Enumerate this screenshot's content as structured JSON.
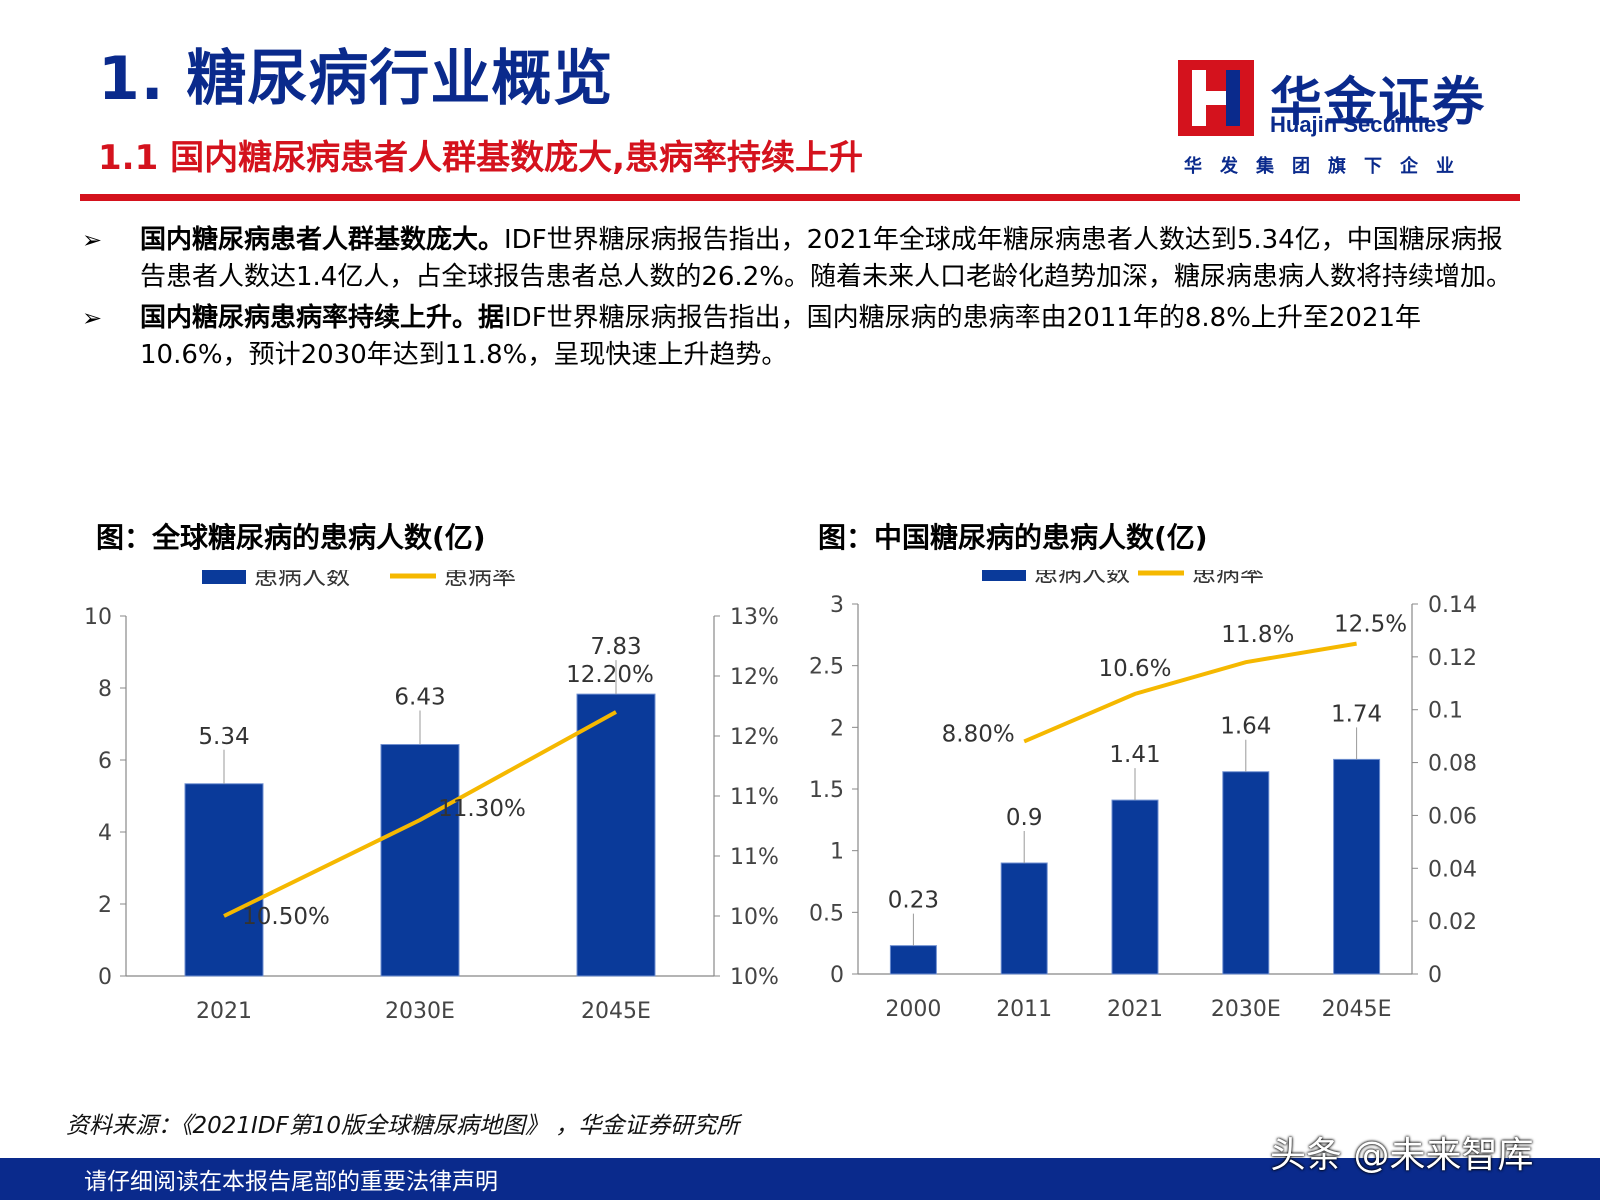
{
  "header": {
    "title": "1. 糖尿病行业概览",
    "subtitle": "1.1 国内糖尿病患者人群基数庞大,患病率持续上升"
  },
  "logo": {
    "name_cn": "华金证券",
    "name_en": "Huajin Securities",
    "slogan": "华发集团旗下企业"
  },
  "bullets": [
    {
      "marker": "➢",
      "lead": "国内糖尿病患者人群基数庞大。",
      "body": "IDF世界糖尿病报告指出，2021年全球成年糖尿病患者人数达到5.34亿，中国糖尿病报告患者人数达1.4亿人，占全球报告患者总人数的26.2%。随着未来人口老龄化趋势加深，糖尿病患病人数将持续增加。"
    },
    {
      "marker": "➢",
      "lead": "国内糖尿病患病率持续上升。据",
      "body": "IDF世界糖尿病报告指出，国内糖尿病的患病率由2011年的8.8%上升至2021年10.6%，预计2030年达到11.8%，呈现快速上升趋势。"
    }
  ],
  "chart_data": [
    {
      "type": "bar",
      "title": "图：全球糖尿病的患病人数(亿)",
      "legend": [
        "患病人数",
        "患病率"
      ],
      "legend_position": "top",
      "categories": [
        "2021",
        "2030E",
        "2045E"
      ],
      "series": [
        {
          "name": "患病人数",
          "type": "bar",
          "axis": "left",
          "values": [
            5.34,
            6.43,
            7.83
          ],
          "labels": [
            "5.34",
            "6.43",
            "7.83"
          ],
          "color": "#0a3a9a"
        },
        {
          "name": "患病率",
          "type": "line",
          "axis": "right",
          "values": [
            10.5,
            11.3,
            12.2
          ],
          "labels": [
            "10.50%",
            "11.30%",
            "12.20%"
          ],
          "color": "#f5b800"
        }
      ],
      "y_left": {
        "min": 0,
        "max": 10,
        "ticks": [
          "0",
          "2",
          "4",
          "6",
          "8",
          "10"
        ]
      },
      "y_right": {
        "min": 10,
        "max": 13,
        "ticks": [
          "10%",
          "10%",
          "11%",
          "11%",
          "12%",
          "12%",
          "13%"
        ]
      },
      "grid": false
    },
    {
      "type": "bar",
      "title": "图：中国糖尿病的患病人数(亿)",
      "legend": [
        "患病人数",
        "患病率"
      ],
      "legend_position": "top",
      "categories": [
        "2000",
        "2011",
        "2021",
        "2030E",
        "2045E"
      ],
      "series": [
        {
          "name": "患病人数",
          "type": "bar",
          "axis": "left",
          "values": [
            0.23,
            0.9,
            1.41,
            1.64,
            1.74
          ],
          "labels": [
            "0.23",
            "0.9",
            "1.41",
            "1.64",
            "1.74"
          ],
          "color": "#0a3a9a"
        },
        {
          "name": "患病率",
          "type": "line",
          "axis": "right",
          "values": [
            null,
            0.088,
            0.106,
            0.118,
            0.125
          ],
          "labels": [
            "",
            "8.80%",
            "10.6%",
            "11.8%",
            "12.5%"
          ],
          "color": "#f5b800"
        }
      ],
      "y_left": {
        "min": 0,
        "max": 3,
        "ticks": [
          "0",
          "0.5",
          "1",
          "1.5",
          "2",
          "2.5",
          "3"
        ]
      },
      "y_right": {
        "min": 0,
        "max": 0.14,
        "ticks": [
          "0",
          "0.02",
          "0.04",
          "0.06",
          "0.08",
          "0.1",
          "0.12",
          "0.14"
        ]
      },
      "grid": false
    }
  ],
  "source": "资料来源：《2021IDF第10版全球糖尿病地图》 ，华金证券研究所",
  "footer": "请仔细阅读在本报告尾部的重要法律声明",
  "watermark": "头条 @未来智库",
  "colors": {
    "brand_blue": "#0a2a8c",
    "brand_red": "#d4121d",
    "bar_blue": "#0a3a9a",
    "line_yellow": "#f5b800"
  }
}
